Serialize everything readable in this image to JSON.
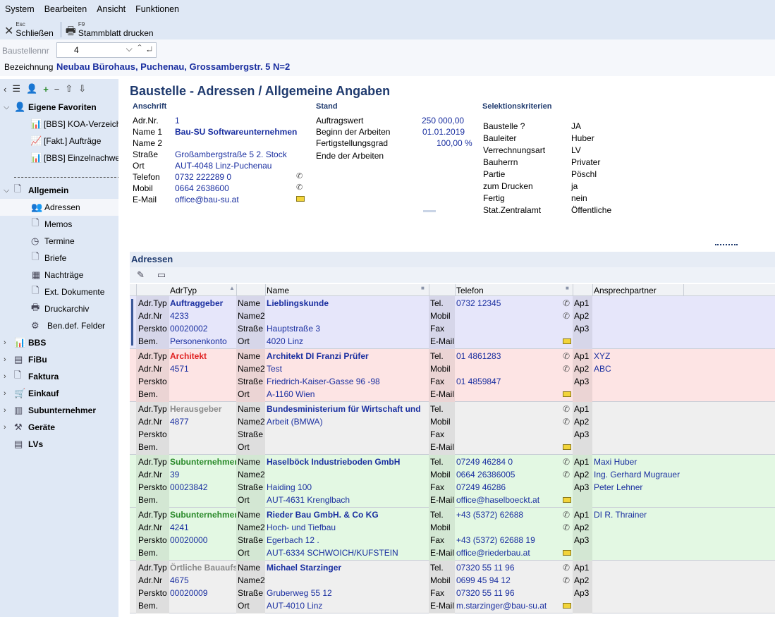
{
  "menu": [
    "System",
    "Bearbeiten",
    "Ansicht",
    "Funktionen"
  ],
  "toolbar": {
    "close": {
      "key": "Esc",
      "label": "Schließen"
    },
    "print": {
      "key": "F9",
      "label": "Stammblatt drucken"
    }
  },
  "project": {
    "nr_label": "Baustellennr",
    "nr_value": "4",
    "bez_label": "Bezeichnung",
    "bez_value": "Neubau Bürohaus, Puchenau, Grossambergstr. 5  N=2"
  },
  "sidebar": {
    "favorites_label": "Eigene Favoriten",
    "favorites": [
      "[BBS] KOA-Verzeichnis",
      "[Fakt.] Aufträge",
      "[BBS] Einzelnachweis"
    ],
    "allgemein_label": "Allgemein",
    "allgemein_items": [
      "Adressen",
      "Memos",
      "Termine",
      "Briefe",
      "Nachträge",
      "Ext. Dokumente",
      "Druckarchiv",
      "Ben.def. Felder"
    ],
    "groups": [
      "BBS",
      "FiBu",
      "Faktura",
      "Einkauf",
      "Subunternehmer",
      "Geräte"
    ],
    "lvs": "LVs"
  },
  "page": {
    "title": "Baustelle - Adressen / Allgemeine Angaben"
  },
  "anschrift": {
    "header": "Anschrift",
    "labels": [
      "Adr.Nr.",
      "Name 1",
      "Name 2",
      "Straße",
      "Ort",
      "Telefon",
      "Mobil",
      "E-Mail"
    ],
    "values": [
      "1",
      "Bau-SU Softwareunternehmen",
      "",
      "Großambergstraße 5 2. Stock",
      "AUT-4048 Linz-Puchenau",
      "0732 222289 0",
      "0664 2638600",
      "office@bau-su.at"
    ]
  },
  "stand": {
    "header": "Stand",
    "labels": [
      "Auftragswert",
      "Beginn der Arbeiten",
      "Fertigstellungsgrad",
      "Ende der Arbeiten"
    ],
    "values": [
      "250 000,00",
      "01.01.2019",
      "100,00 %",
      ""
    ]
  },
  "selektion": {
    "header": "Selektionskriterien",
    "labels": [
      "Baustelle ?",
      "Bauleiter",
      "Verrechnungsart",
      "Bauherrn",
      "Partie",
      "zum Drucken",
      "Fertig",
      "Stat.Zentralamt"
    ],
    "values": [
      "JA",
      "Huber",
      "LV",
      "Privater",
      "Pöschl",
      "ja",
      "nein",
      "Öffentliche"
    ]
  },
  "adressen": {
    "title": "Adressen",
    "columns": [
      "AdrTyp",
      "Name",
      "Telefon",
      "Ansprechpartner"
    ],
    "row_labels_a": [
      "Adr.Typ",
      "Adr.Nr",
      "Perskto",
      "Bem."
    ],
    "row_labels_b": [
      "Name",
      "Name2",
      "Straße",
      "Ort"
    ],
    "row_labels_c": [
      "Tel.",
      "Mobil",
      "Fax",
      "E-Mail"
    ],
    "row_labels_d": [
      "Ap1",
      "Ap2",
      "Ap3"
    ],
    "records": [
      {
        "bg": "#e6e6fa",
        "typ_color": "#1a2fa0",
        "typ": "Auftraggeber",
        "nr": "4233",
        "perskto": "00020002",
        "bem": "Personenkonto",
        "name": "Lieblingskunde",
        "name2": "",
        "strasse": "Hauptstraße 3",
        "ort": "4020 Linz",
        "tel": "0732 12345",
        "mobil": "",
        "fax": "",
        "email": "",
        "ap": [
          "",
          "",
          ""
        ]
      },
      {
        "bg": "#fde4e4",
        "typ_color": "#e02020",
        "typ": "Architekt",
        "nr": "4571",
        "perskto": "",
        "bem": "",
        "name": "Architekt DI Franzi Prüfer",
        "name2": "Test",
        "strasse": "Friedrich-Kaiser-Gasse 96 -98",
        "ort": "A-1160 Wien",
        "tel": "01 4861283",
        "mobil": "",
        "fax": "01 4859847",
        "email": "",
        "ap": [
          "XYZ",
          "ABC",
          ""
        ]
      },
      {
        "bg": "#efefef",
        "typ_color": "#8a8a8a",
        "typ": "Herausgeber",
        "nr": "4877",
        "perskto": "",
        "bem": "",
        "name": "Bundesministerium für Wirtschaft und",
        "name2": "Arbeit (BMWA)",
        "strasse": "",
        "ort": "",
        "tel": "",
        "mobil": "",
        "fax": "",
        "email": "",
        "ap": [
          "",
          "",
          ""
        ]
      },
      {
        "bg": "#e3f8e3",
        "typ_color": "#2a8a2a",
        "typ": "Subunternehmer",
        "nr": "39",
        "perskto": "00023842",
        "bem": "",
        "name": "Haselböck Industrieboden GmbH",
        "name2": "",
        "strasse": "Haiding 100",
        "ort": "AUT-4631 Krenglbach",
        "tel": "07249 46284 0",
        "mobil": "0664 26386005",
        "fax": "07249 46286",
        "email": "office@haselboeckt.at",
        "ap": [
          "Maxi Huber",
          "Ing. Gerhard Mugrauer",
          "Peter Lehner"
        ]
      },
      {
        "bg": "#e3f8e3",
        "typ_color": "#2a8a2a",
        "typ": "Subunternehmer",
        "nr": "4241",
        "perskto": "00020000",
        "bem": "",
        "name": "Rieder Bau GmbH. & Co KG",
        "name2": "Hoch- und Tiefbau",
        "strasse": "Egerbach 12 .",
        "ort": "AUT-6334 SCHWOICH/KUFSTEIN",
        "tel": "+43 (5372) 62688",
        "mobil": "",
        "fax": "+43 (5372) 62688 19",
        "email": "office@riederbau.at",
        "ap": [
          "DI R. Thrainer",
          "",
          ""
        ]
      },
      {
        "bg": "#efefef",
        "typ_color": "#8a8a8a",
        "typ": "Örtliche Bauaufsicht",
        "nr": "4675",
        "perskto": "00020009",
        "bem": "",
        "name": "Michael Starzinger",
        "name2": "",
        "strasse": "Gruberweg 55 12",
        "ort": "AUT-4010 Linz",
        "tel": "07320 55 11 96",
        "mobil": "0699 45 94 12",
        "fax": "07320 55 11 96",
        "email": "m.starzinger@bau-su.at",
        "ap": [
          "",
          "",
          ""
        ]
      }
    ]
  }
}
